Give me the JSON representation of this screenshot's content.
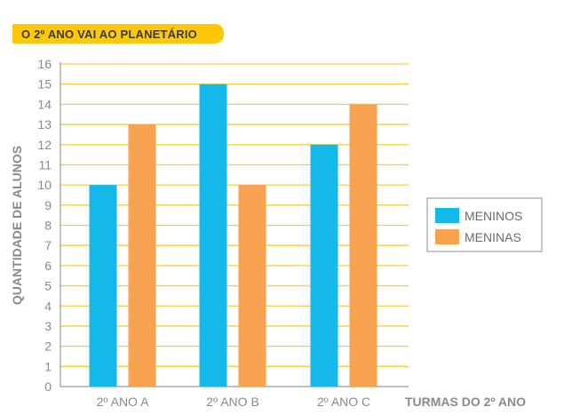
{
  "chart_data": {
    "type": "bar",
    "title": "O 2º ANO VAI AO PLANETÁRIO",
    "xlabel": "TURMAS DO 2º ANO",
    "ylabel": "QUANTIDADE DE ALUNOS",
    "categories": [
      "2º ANO A",
      "2º ANO B",
      "2º ANO C"
    ],
    "series": [
      {
        "name": "MENINOS",
        "values": [
          10,
          15,
          12
        ],
        "color": "#14b9e9"
      },
      {
        "name": "MENINAS",
        "values": [
          13,
          10,
          14
        ],
        "color": "#f6a251"
      }
    ],
    "ylim": [
      0,
      16
    ],
    "yticks": [
      0,
      1,
      2,
      3,
      4,
      5,
      6,
      7,
      8,
      9,
      10,
      11,
      12,
      13,
      14,
      15,
      16
    ],
    "grid": true,
    "legend_position": "right",
    "colors": {
      "grid": "#f5cf3e",
      "axis": "#9a9a9a",
      "text": "#8a8a8a",
      "title_bg": "#fdc80a"
    }
  }
}
